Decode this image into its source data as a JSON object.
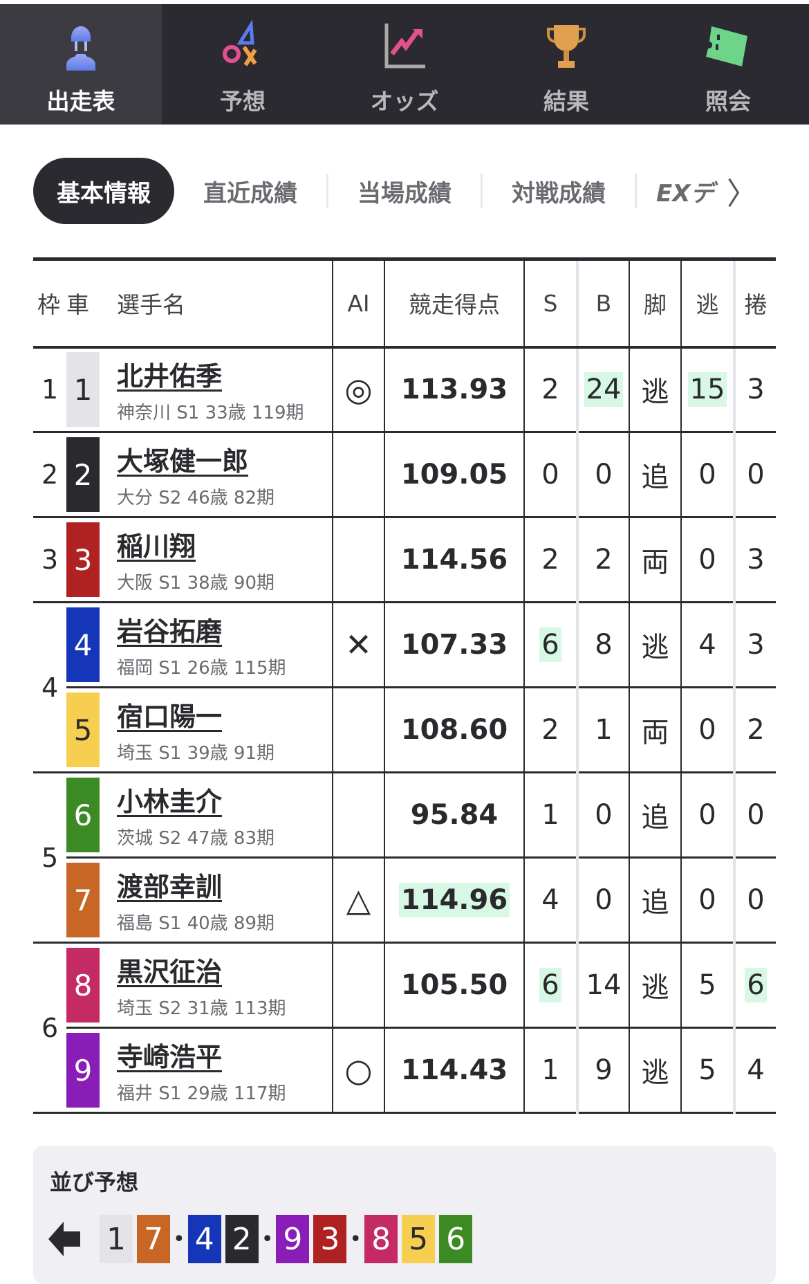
{
  "nav": [
    {
      "label": "出走表",
      "icon": "rider-icon",
      "active": true
    },
    {
      "label": "予想",
      "icon": "prediction-symbols-icon"
    },
    {
      "label": "オッズ",
      "icon": "odds-chart-icon"
    },
    {
      "label": "結果",
      "icon": "trophy-icon"
    },
    {
      "label": "照会",
      "icon": "ticket-icon"
    }
  ],
  "tabs": [
    "基本情報",
    "直近成績",
    "当場成績",
    "対戦成績",
    "EXデ"
  ],
  "headers": {
    "waku": "枠",
    "car": "車",
    "name": "選手名",
    "ai": "AI",
    "score": "競走得点",
    "s": "S",
    "b": "B",
    "leg": "脚",
    "nige": "逃",
    "makuri": "捲"
  },
  "rows": [
    {
      "waku": "1",
      "wakuSpan": 1,
      "car": "1",
      "name": "北井佑季",
      "sub": "神奈川 S1 33歳 119期",
      "ai": "◎",
      "score": "113.93",
      "s": "2",
      "b": "24",
      "leg": "逃",
      "nige": "15",
      "makuri": "3",
      "hl": [
        "b",
        "nige"
      ]
    },
    {
      "waku": "2",
      "wakuSpan": 1,
      "car": "2",
      "name": "大塚健一郎",
      "sub": "大分 S2 46歳 82期",
      "ai": "",
      "score": "109.05",
      "s": "0",
      "b": "0",
      "leg": "追",
      "nige": "0",
      "makuri": "0",
      "hl": []
    },
    {
      "waku": "3",
      "wakuSpan": 1,
      "car": "3",
      "name": "稲川翔",
      "sub": "大阪 S1 38歳 90期",
      "ai": "",
      "score": "114.56",
      "s": "2",
      "b": "2",
      "leg": "両",
      "nige": "0",
      "makuri": "3",
      "hl": []
    },
    {
      "waku": "4",
      "wakuSpan": 2,
      "car": "4",
      "name": "岩谷拓磨",
      "sub": "福岡 S1 26歳 115期",
      "ai": "✕",
      "score": "107.33",
      "s": "6",
      "b": "8",
      "leg": "逃",
      "nige": "4",
      "makuri": "3",
      "hl": [
        "s"
      ]
    },
    {
      "waku": null,
      "car": "5",
      "name": "宿口陽一",
      "sub": "埼玉 S1 39歳 91期",
      "ai": "",
      "score": "108.60",
      "s": "2",
      "b": "1",
      "leg": "両",
      "nige": "0",
      "makuri": "2",
      "hl": []
    },
    {
      "waku": "5",
      "wakuSpan": 2,
      "car": "6",
      "name": "小林圭介",
      "sub": "茨城 S2 47歳 83期",
      "ai": "",
      "score": "95.84",
      "s": "1",
      "b": "0",
      "leg": "追",
      "nige": "0",
      "makuri": "0",
      "hl": []
    },
    {
      "waku": null,
      "car": "7",
      "name": "渡部幸訓",
      "sub": "福島 S1 40歳 89期",
      "ai": "△",
      "score": "114.96",
      "s": "4",
      "b": "0",
      "leg": "追",
      "nige": "0",
      "makuri": "0",
      "hl": [
        "score"
      ]
    },
    {
      "waku": "6",
      "wakuSpan": 2,
      "car": "8",
      "name": "黒沢征治",
      "sub": "埼玉 S2 31歳 113期",
      "ai": "",
      "score": "105.50",
      "s": "6",
      "b": "14",
      "leg": "逃",
      "nige": "5",
      "makuri": "6",
      "hl": [
        "s",
        "makuri"
      ]
    },
    {
      "waku": null,
      "car": "9",
      "name": "寺崎浩平",
      "sub": "福井 S1 29歳 117期",
      "ai": "○",
      "score": "114.43",
      "s": "1",
      "b": "9",
      "leg": "逃",
      "nige": "5",
      "makuri": "4",
      "hl": []
    }
  ],
  "carColors": {
    "1": [
      "#e4e3e8",
      "#2a2a2e"
    ],
    "2": [
      "#2a2a2e",
      "#ffffff"
    ],
    "3": [
      "#b02222",
      "#ffffff"
    ],
    "4": [
      "#1536b8",
      "#ffffff"
    ],
    "5": [
      "#f6cf50",
      "#2a2a2e"
    ],
    "6": [
      "#3c8a23",
      "#ffffff"
    ],
    "7": [
      "#c86626",
      "#ffffff"
    ],
    "8": [
      "#c42a63",
      "#ffffff"
    ],
    "9": [
      "#8a1db8",
      "#ffffff"
    ]
  },
  "highlightColor": "#d7f8e4",
  "lineup": {
    "title": "並び予想",
    "groups": [
      [
        "1",
        "7"
      ],
      [
        "4",
        "2"
      ],
      [
        "9",
        "3"
      ],
      [
        "8",
        "5",
        "6"
      ]
    ],
    "direction_icon": "arrow-left-icon"
  }
}
